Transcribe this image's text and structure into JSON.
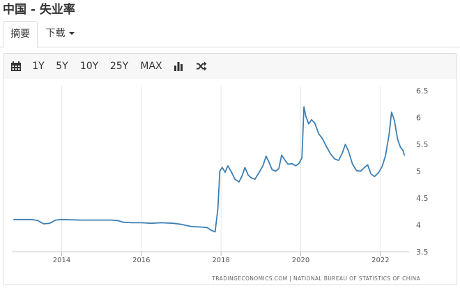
{
  "page": {
    "title": "中国 - 失业率"
  },
  "tabs": [
    {
      "label": "摘要",
      "active": true
    },
    {
      "label": "下载",
      "active": false
    }
  ],
  "toolbar": {
    "calendar_icon": "calendar-icon",
    "ranges": [
      "1Y",
      "5Y",
      "10Y",
      "25Y",
      "MAX"
    ],
    "chart_type_icon": "bar-chart-icon",
    "compare_icon": "shuffle-icon"
  },
  "colors": {
    "line": "#3d7fb4",
    "grid": "#e6e6e6",
    "text": "#333333"
  },
  "chart_data": {
    "type": "line",
    "title": "",
    "xlabel": "",
    "ylabel": "",
    "xlim": [
      2012.75,
      2022.65
    ],
    "ylim": [
      3.5,
      6.5
    ],
    "x_ticks": [
      "2014",
      "2016",
      "2018",
      "2020",
      "2022"
    ],
    "y_ticks": [
      "3.5",
      "4",
      "4.5",
      "5",
      "5.5",
      "6",
      "6.5"
    ],
    "y_axis_position": "right",
    "grid": "vertical",
    "credit": "TRADINGECONOMICS.COM | NATIONAL BUREAU OF STATISTICS OF CHINA",
    "series": [
      {
        "values": [
          [
            2012.8,
            4.1
          ],
          [
            2013.0,
            4.1
          ],
          [
            2013.25,
            4.1
          ],
          [
            2013.4,
            4.08
          ],
          [
            2013.55,
            4.02
          ],
          [
            2013.7,
            4.03
          ],
          [
            2013.85,
            4.09
          ],
          [
            2014.0,
            4.1
          ],
          [
            2014.5,
            4.09
          ],
          [
            2015.0,
            4.09
          ],
          [
            2015.25,
            4.09
          ],
          [
            2015.4,
            4.08
          ],
          [
            2015.55,
            4.05
          ],
          [
            2015.75,
            4.04
          ],
          [
            2016.0,
            4.04
          ],
          [
            2016.25,
            4.03
          ],
          [
            2016.5,
            4.04
          ],
          [
            2016.8,
            4.03
          ],
          [
            2017.0,
            4.01
          ],
          [
            2017.25,
            3.97
          ],
          [
            2017.5,
            3.96
          ],
          [
            2017.65,
            3.95
          ],
          [
            2017.75,
            3.9
          ],
          [
            2017.85,
            3.87
          ],
          [
            2017.92,
            4.3
          ],
          [
            2017.97,
            5.0
          ],
          [
            2018.03,
            5.07
          ],
          [
            2018.1,
            4.98
          ],
          [
            2018.17,
            5.1
          ],
          [
            2018.25,
            5.0
          ],
          [
            2018.35,
            4.85
          ],
          [
            2018.45,
            4.8
          ],
          [
            2018.52,
            4.9
          ],
          [
            2018.6,
            5.07
          ],
          [
            2018.68,
            4.93
          ],
          [
            2018.75,
            4.88
          ],
          [
            2018.85,
            4.85
          ],
          [
            2018.95,
            4.97
          ],
          [
            2019.05,
            5.1
          ],
          [
            2019.13,
            5.28
          ],
          [
            2019.2,
            5.17
          ],
          [
            2019.28,
            5.03
          ],
          [
            2019.37,
            5.0
          ],
          [
            2019.45,
            5.05
          ],
          [
            2019.52,
            5.3
          ],
          [
            2019.6,
            5.21
          ],
          [
            2019.68,
            5.13
          ],
          [
            2019.78,
            5.14
          ],
          [
            2019.88,
            5.1
          ],
          [
            2019.96,
            5.15
          ],
          [
            2020.03,
            5.25
          ],
          [
            2020.08,
            6.2
          ],
          [
            2020.13,
            6.02
          ],
          [
            2020.2,
            5.88
          ],
          [
            2020.27,
            5.96
          ],
          [
            2020.35,
            5.9
          ],
          [
            2020.45,
            5.7
          ],
          [
            2020.55,
            5.6
          ],
          [
            2020.65,
            5.45
          ],
          [
            2020.75,
            5.32
          ],
          [
            2020.85,
            5.23
          ],
          [
            2020.95,
            5.2
          ],
          [
            2021.05,
            5.35
          ],
          [
            2021.12,
            5.5
          ],
          [
            2021.2,
            5.37
          ],
          [
            2021.3,
            5.13
          ],
          [
            2021.4,
            5.01
          ],
          [
            2021.5,
            5.0
          ],
          [
            2021.6,
            5.07
          ],
          [
            2021.68,
            5.12
          ],
          [
            2021.76,
            4.95
          ],
          [
            2021.85,
            4.9
          ],
          [
            2021.95,
            4.97
          ],
          [
            2022.05,
            5.1
          ],
          [
            2022.13,
            5.3
          ],
          [
            2022.22,
            5.7
          ],
          [
            2022.28,
            6.1
          ],
          [
            2022.35,
            5.95
          ],
          [
            2022.43,
            5.6
          ],
          [
            2022.5,
            5.45
          ],
          [
            2022.57,
            5.38
          ],
          [
            2022.6,
            5.3
          ]
        ]
      }
    ]
  }
}
